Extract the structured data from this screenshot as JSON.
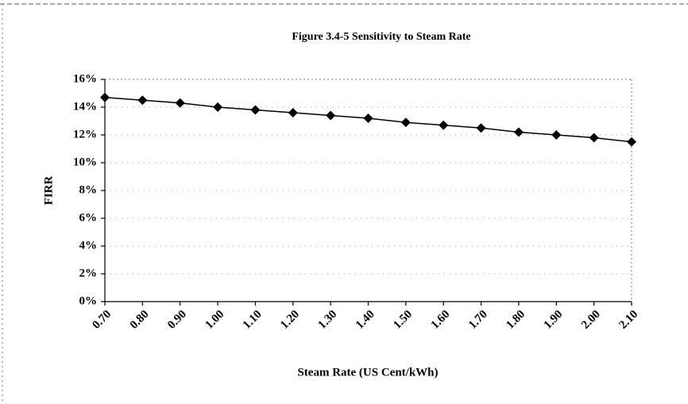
{
  "chart_data": {
    "type": "line",
    "title": "Figure 3.4-5  Sensitivity to Steam Rate",
    "x_label": "Steam Rate (US Cent/kWh)",
    "y_label": "FIRR",
    "categories": [
      "0.70",
      "0.80",
      "0.90",
      "1.00",
      "1.10",
      "1.20",
      "1.30",
      "1.40",
      "1.50",
      "1.60",
      "1.70",
      "1.80",
      "1.90",
      "2.00",
      "2.10"
    ],
    "values": [
      14.7,
      14.5,
      14.3,
      14.0,
      13.8,
      13.6,
      13.4,
      13.2,
      12.9,
      12.7,
      12.5,
      12.2,
      12.0,
      11.8,
      11.5
    ],
    "color": "#000000",
    "ylim": [
      0,
      16
    ],
    "yticks": [
      {
        "value": 0,
        "label": "0%"
      },
      {
        "value": 2,
        "label": "2%"
      },
      {
        "value": 4,
        "label": "4%"
      },
      {
        "value": 6,
        "label": "6%"
      },
      {
        "value": 8,
        "label": "8%"
      },
      {
        "value": 10,
        "label": "10%"
      },
      {
        "value": 12,
        "label": "12%"
      },
      {
        "value": 14,
        "label": "14%"
      },
      {
        "value": 16,
        "label": "16%"
      }
    ],
    "grid": true
  }
}
